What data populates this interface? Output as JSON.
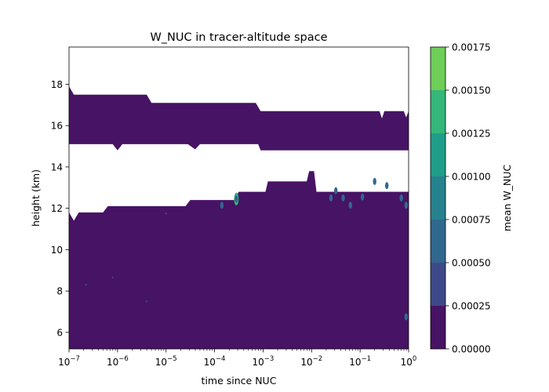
{
  "chart_data": {
    "type": "contourf",
    "title": "W_NUC in tracer-altitude space",
    "xlabel": "time since NUC",
    "ylabel": "height (km)",
    "x_scale": "log",
    "xlim": [
      1e-07,
      1
    ],
    "ylim": [
      5.2,
      19.8
    ],
    "x_ticks": [
      {
        "value": 1e-07,
        "base": "10",
        "exp": "−7"
      },
      {
        "value": 1e-06,
        "base": "10",
        "exp": "−6"
      },
      {
        "value": 1e-05,
        "base": "10",
        "exp": "−5"
      },
      {
        "value": 0.0001,
        "base": "10",
        "exp": "−4"
      },
      {
        "value": 0.001,
        "base": "10",
        "exp": "−3"
      },
      {
        "value": 0.01,
        "base": "10",
        "exp": "−2"
      },
      {
        "value": 0.1,
        "base": "10",
        "exp": "−1"
      },
      {
        "value": 1,
        "base": "10",
        "exp": "0"
      }
    ],
    "y_ticks": [
      6,
      8,
      10,
      12,
      14,
      16,
      18
    ],
    "colorbar": {
      "label": "mean W_NUC",
      "levels": [
        0.0,
        0.00025,
        0.0005,
        0.00075,
        0.001,
        0.00125,
        0.0015,
        0.00175
      ],
      "tick_labels": [
        "0.00000",
        "0.00025",
        "0.00050",
        "0.00075",
        "0.00100",
        "0.00125",
        "0.00150",
        "0.00175"
      ],
      "colors": [
        "#471365",
        "#3e4989",
        "#31688e",
        "#26828e",
        "#1f9e89",
        "#35b779",
        "#6ece58",
        "#b5de2b"
      ]
    },
    "regions": {
      "upper_band": {
        "top": [
          [
            -7,
            17.9
          ],
          [
            -6.9,
            17.5
          ],
          [
            -5.4,
            17.5
          ],
          [
            -5.3,
            17.1
          ],
          [
            -3.15,
            17.1
          ],
          [
            -3.05,
            16.7
          ],
          [
            -0.6,
            16.7
          ],
          [
            -0.55,
            16.35
          ],
          [
            -0.5,
            16.7
          ],
          [
            -0.1,
            16.7
          ],
          [
            -0.05,
            16.4
          ],
          [
            0,
            16.7
          ]
        ],
        "bottom": [
          [
            0,
            14.8
          ],
          [
            -3.05,
            14.8
          ],
          [
            -3.1,
            15.1
          ],
          [
            -4.3,
            15.1
          ],
          [
            -4.4,
            14.85
          ],
          [
            -4.55,
            15.1
          ],
          [
            -5.9,
            15.1
          ],
          [
            -6.0,
            14.8
          ],
          [
            -6.1,
            15.1
          ],
          [
            -7,
            15.1
          ]
        ]
      },
      "lower_region": {
        "top": [
          [
            -7,
            11.8
          ],
          [
            -6.9,
            11.4
          ],
          [
            -6.8,
            11.8
          ],
          [
            -6.3,
            11.8
          ],
          [
            -6.2,
            12.1
          ],
          [
            -4.6,
            12.1
          ],
          [
            -4.5,
            12.4
          ],
          [
            -3.6,
            12.4
          ],
          [
            -3.5,
            12.8
          ],
          [
            -2.95,
            12.8
          ],
          [
            -2.9,
            13.3
          ],
          [
            -2.1,
            13.3
          ],
          [
            -2.05,
            13.8
          ],
          [
            -1.95,
            13.8
          ],
          [
            -1.9,
            12.8
          ],
          [
            0,
            12.8
          ]
        ],
        "bottom": 5.2
      },
      "features": [
        {
          "x": -3.55,
          "y": 12.45,
          "level": 5
        },
        {
          "x": -3.55,
          "y": 12.45,
          "level": 2
        },
        {
          "x": -3.85,
          "y": 12.15,
          "level": 2
        },
        {
          "x": -1.6,
          "y": 12.5,
          "level": 2
        },
        {
          "x": -1.5,
          "y": 12.85,
          "level": 2
        },
        {
          "x": -1.35,
          "y": 12.5,
          "level": 2
        },
        {
          "x": -1.2,
          "y": 12.15,
          "level": 2
        },
        {
          "x": -0.95,
          "y": 12.55,
          "level": 2
        },
        {
          "x": -0.7,
          "y": 13.3,
          "level": 2
        },
        {
          "x": -0.45,
          "y": 13.1,
          "level": 2
        },
        {
          "x": -0.15,
          "y": 12.5,
          "level": 2
        },
        {
          "x": -0.05,
          "y": 12.15,
          "level": 2
        },
        {
          "x": -0.05,
          "y": 6.75,
          "level": 2
        },
        {
          "x": -6.65,
          "y": 8.3,
          "level": 1
        },
        {
          "x": -6.1,
          "y": 8.65,
          "level": 1
        },
        {
          "x": -5.4,
          "y": 7.5,
          "level": 1
        },
        {
          "x": -5.0,
          "y": 11.75,
          "level": 1
        }
      ]
    }
  }
}
